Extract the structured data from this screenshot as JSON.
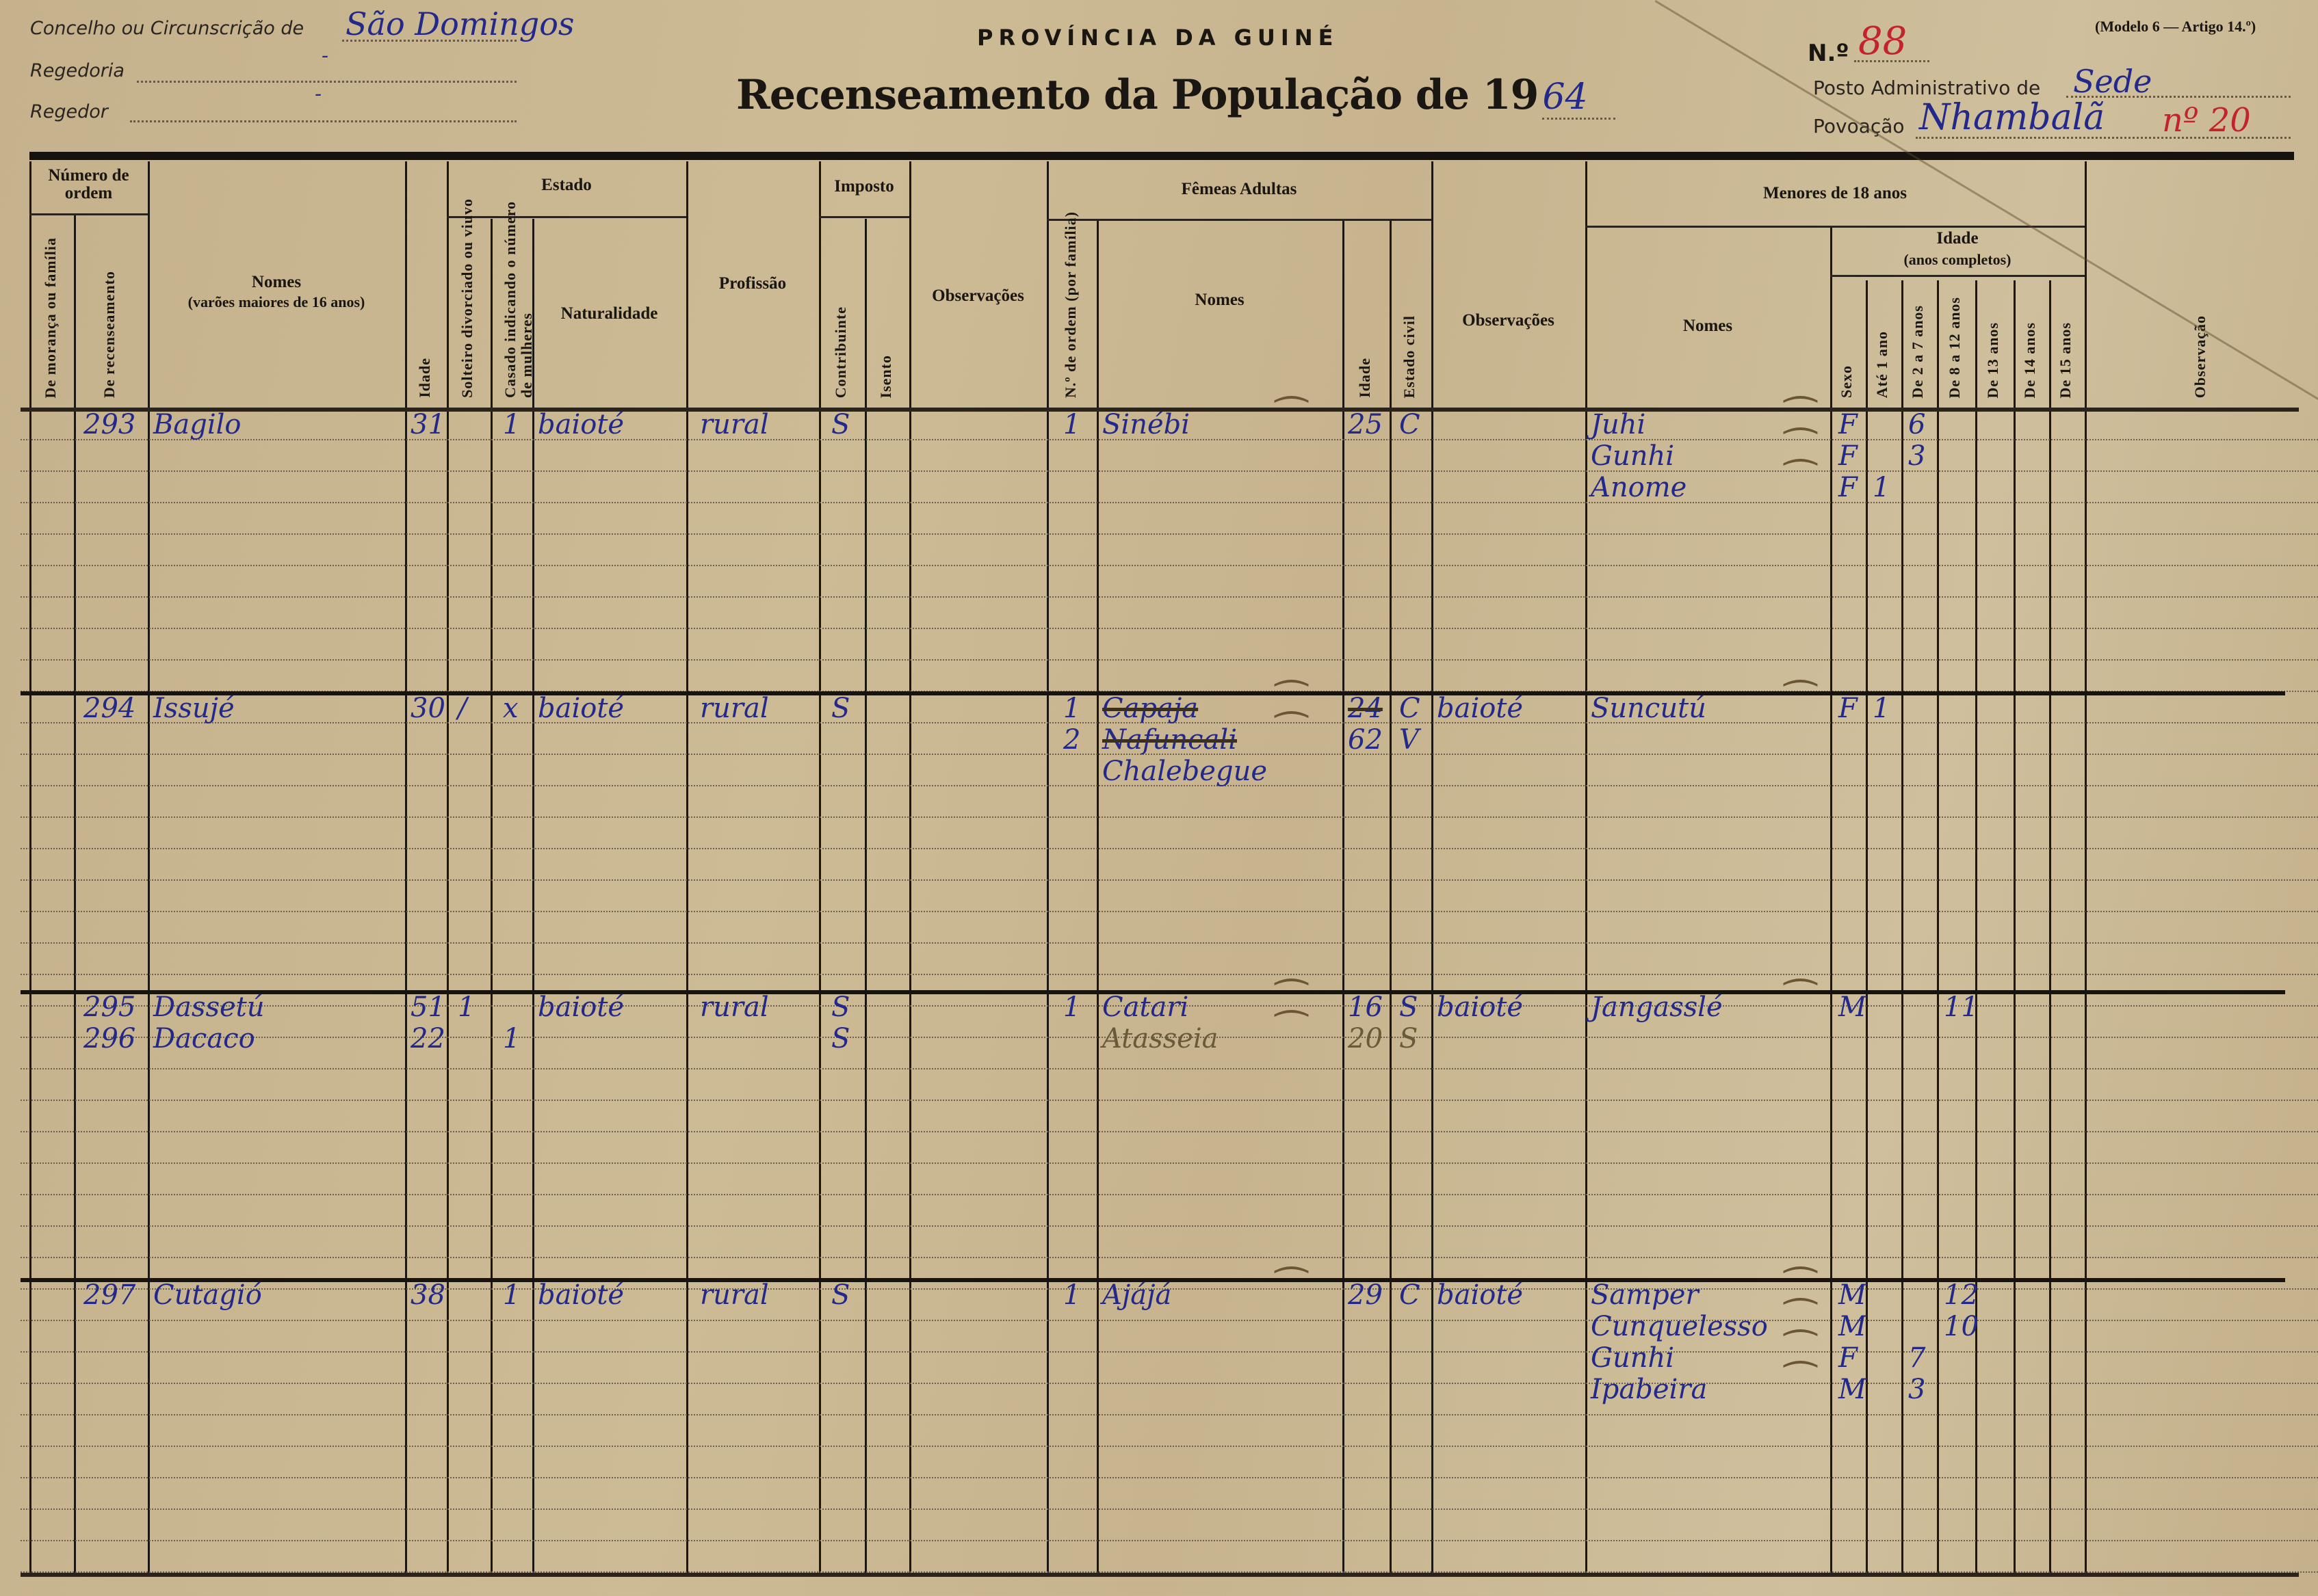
{
  "header": {
    "concelho_label": "Concelho ou Circunscrição de",
    "concelho_value": "São Domingos",
    "regedoria_label": "Regedoria",
    "regedoria_value": "-",
    "regedor_label": "Regedor",
    "regedor_value": "-",
    "province": "PROVÍNCIA DA GUINÉ",
    "title": "Recenseamento da População de 19",
    "year": "64",
    "modelo": "(Modelo 6 — Artigo 14.º)",
    "numero_label": "N.º",
    "numero_value": "88",
    "posto_label": "Posto Administrativo de",
    "posto_value": "Sede",
    "povoacao_label": "Povoação",
    "povoacao_value": "Nhambalã",
    "povoacao_note": "nº 20"
  },
  "columns": {
    "numero_ordem": "Número de ordem",
    "de_moranca": "De morança ou família",
    "de_recenseamento": "De recenseamento",
    "nomes_varoes": "Nomes",
    "nomes_varoes_sub": "(varões maiores de 16 anos)",
    "idade": "Idade",
    "estado": "Estado",
    "solteiro": "Solteiro divorciado ou viuvo",
    "casado": "Casado indicando o número de mulheres",
    "naturalidade": "Naturalidade",
    "profissao": "Profissão",
    "imposto": "Imposto",
    "contribuinte": "Contribuinte",
    "isento": "Isento",
    "observacoes": "Observações",
    "femeas": "Fêmeas Adultas",
    "f_ordem": "N.º de ordem (por família)",
    "f_nomes": "Nomes",
    "f_idade": "Idade",
    "f_estado": "Estado civil",
    "observacoes2": "Observações",
    "menores": "Menores de 18 anos",
    "m_nomes": "Nomes",
    "m_idade": "Idade",
    "m_idade_sub": "(anos completos)",
    "sexo": "Sexo",
    "ate1": "Até 1 ano",
    "de2a7": "De 2 a 7 anos",
    "de8a12": "De 8 a 12 anos",
    "de13": "De 13 anos",
    "de14": "De 14 anos",
    "de15": "De 15 anos",
    "observacao": "Observação"
  },
  "records": [
    {
      "men": [
        {
          "rec": "293",
          "name": "Bagilo",
          "idade": "31",
          "solteiro": "",
          "casado": "1"
        }
      ],
      "naturalidade": "baioté",
      "profissao": "rural",
      "contribuinte": [
        "S"
      ],
      "females": [
        {
          "n": "1",
          "name": "Sinébi",
          "idade": "25",
          "estado": "C"
        }
      ],
      "obs": "",
      "minors": [
        {
          "name": "Juhi",
          "sexo": "F",
          "age_col": "de2a7",
          "age": "6"
        },
        {
          "name": "Gunhi",
          "sexo": "F",
          "age_col": "de2a7",
          "age": "3"
        },
        {
          "name": "Anome",
          "sexo": "F",
          "age_col": "ate1",
          "age": "1"
        }
      ]
    },
    {
      "men": [
        {
          "rec": "294",
          "name": "Issujé",
          "idade": "30",
          "solteiro": "/",
          "casado": "x"
        }
      ],
      "naturalidade": "baioté",
      "profissao": "rural",
      "contribuinte": [
        "S"
      ],
      "females": [
        {
          "n": "1",
          "name": "Capaja",
          "idade": "24",
          "estado": "C",
          "struck": true
        },
        {
          "n": "2",
          "name": "Nafuncali",
          "struck_name": true,
          "name2": "Chalebegue",
          "idade": "62",
          "estado": "V"
        }
      ],
      "obs": "baioté",
      "minors": [
        {
          "name": "Suncutú",
          "sexo": "F",
          "age_col": "ate1",
          "age": "1"
        }
      ]
    },
    {
      "men": [
        {
          "rec": "295",
          "name": "Dassetú",
          "idade": "51",
          "solteiro": "1",
          "casado": ""
        },
        {
          "rec": "296",
          "name": "Dacaco",
          "idade": "22",
          "solteiro": "",
          "casado": "1"
        }
      ],
      "naturalidade": "baioté",
      "profissao": "rural",
      "contribuinte": [
        "S",
        "S"
      ],
      "females": [
        {
          "n": "1",
          "name": "Catari",
          "idade": "16",
          "estado": "S"
        },
        {
          "n": "",
          "name": "Atasseia",
          "idade": "20",
          "estado": "S",
          "pencil": true
        }
      ],
      "obs": "baioté",
      "minors": [
        {
          "name": "Jangasslé",
          "sexo": "M",
          "age_col": "de8a12",
          "age": "11"
        }
      ]
    },
    {
      "men": [
        {
          "rec": "297",
          "name": "Cutagió",
          "idade": "38",
          "solteiro": "",
          "casado": "1"
        }
      ],
      "naturalidade": "baioté",
      "profissao": "rural",
      "contribuinte": [
        "S"
      ],
      "females": [
        {
          "n": "1",
          "name": "Ajájá",
          "idade": "29",
          "estado": "C"
        }
      ],
      "obs": "baioté",
      "minors": [
        {
          "name": "Samper",
          "sexo": "M",
          "age_col": "de8a12",
          "age": "12"
        },
        {
          "name": "Cunquelesso",
          "sexo": "M",
          "age_col": "de8a12",
          "age": "10"
        },
        {
          "name": "Gunhi",
          "sexo": "F",
          "age_col": "de2a7",
          "age": "7"
        },
        {
          "name": "Ipabeira",
          "sexo": "M",
          "age_col": "de2a7",
          "age": "3"
        }
      ]
    }
  ],
  "colors": {
    "paper": "#c9b690",
    "ink_blue": "#23298a",
    "ink_red": "#c3232a",
    "print": "#1a1612"
  }
}
